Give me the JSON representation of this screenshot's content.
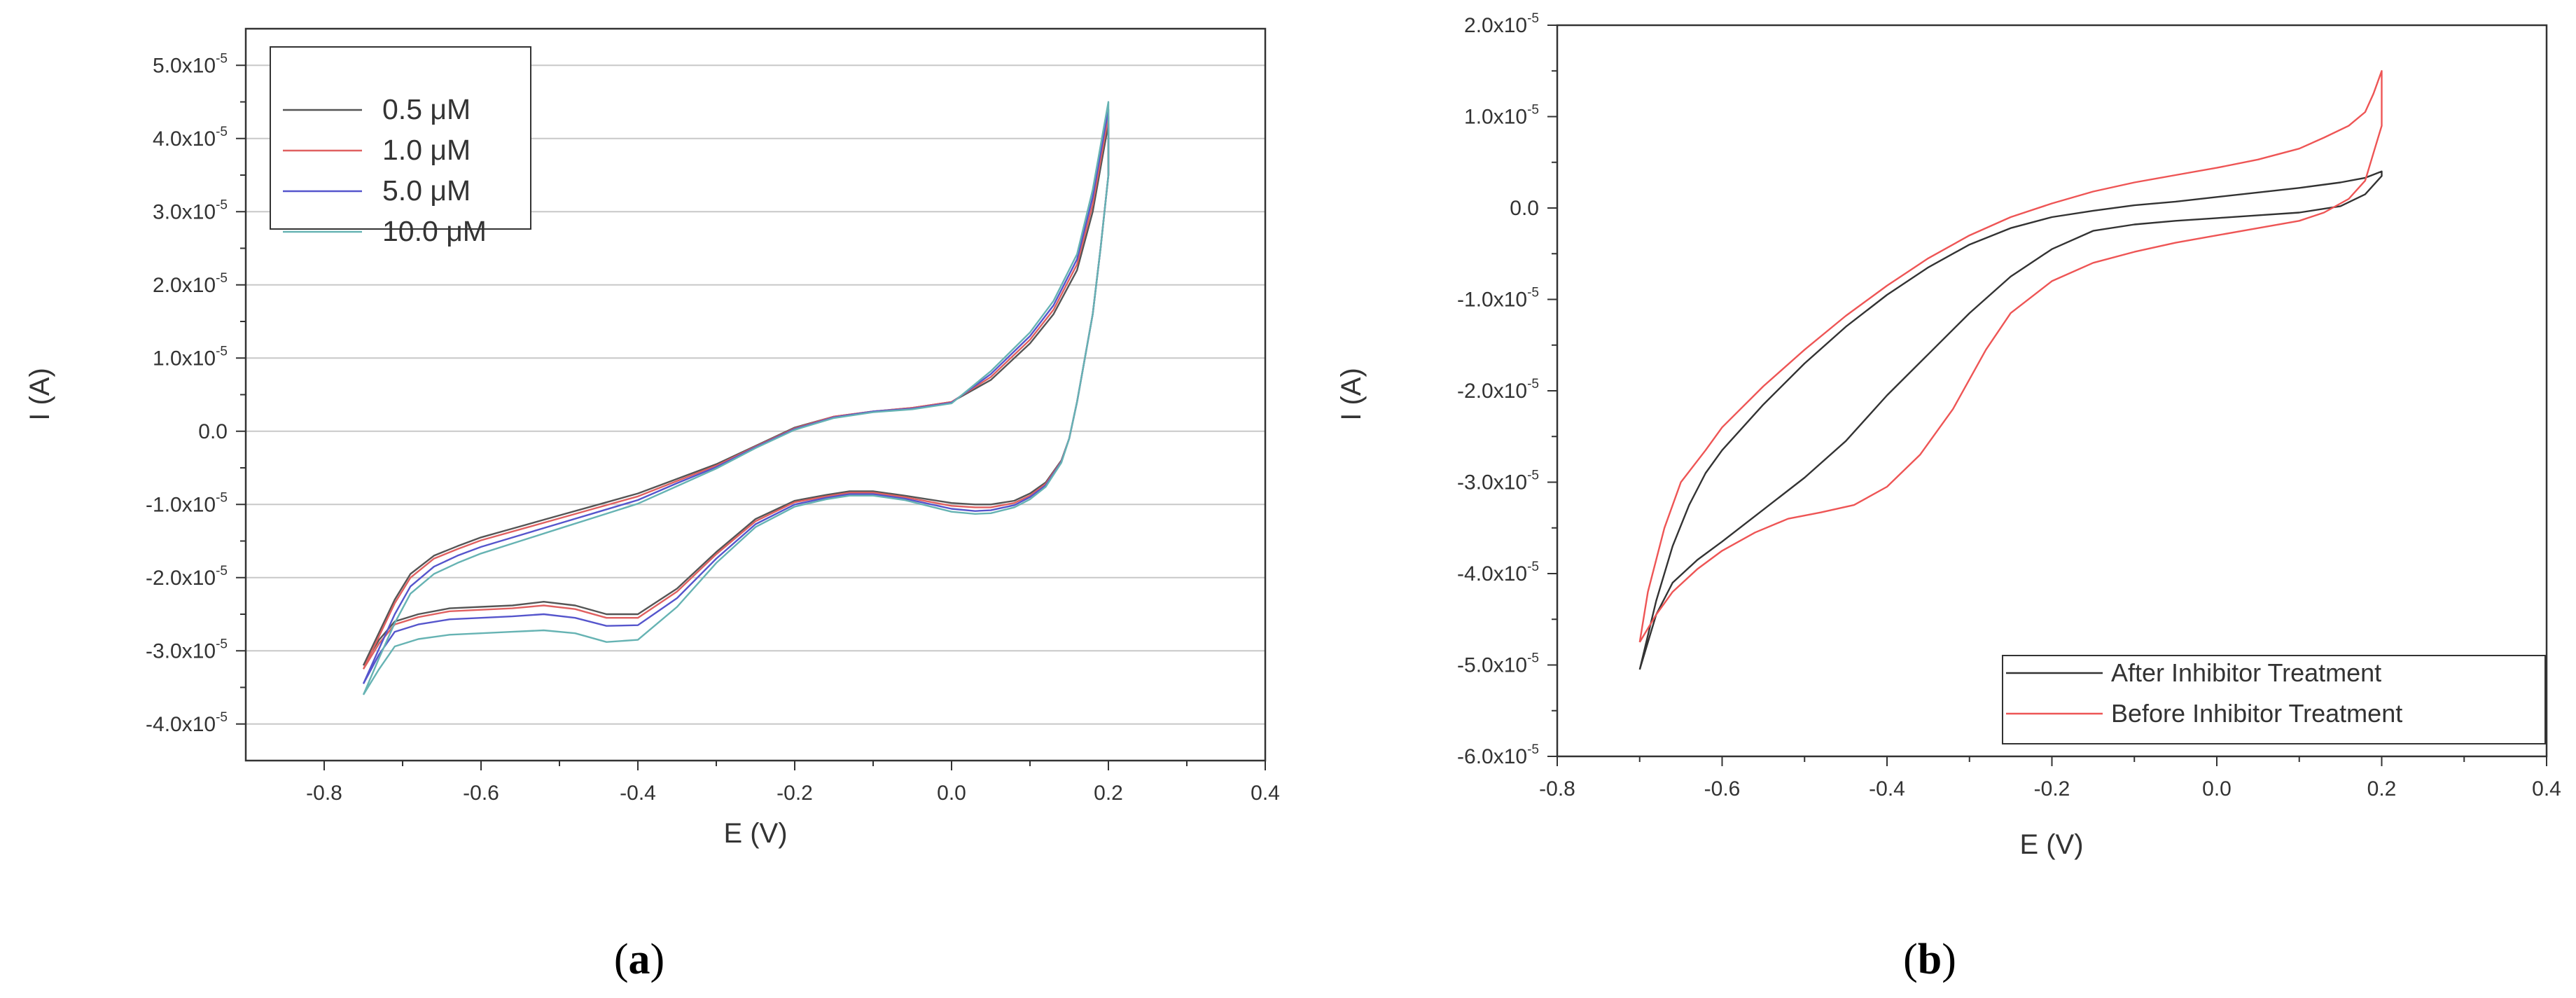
{
  "chart_data": [
    {
      "panel": "a",
      "caption": {
        "open": "(",
        "letter": "a",
        "close": ")"
      },
      "type": "line",
      "xlabel": "E (V)",
      "ylabel": "I (A)",
      "xlim": [
        -0.9,
        0.4
      ],
      "ylim": [
        -4.5e-05,
        5.5e-05
      ],
      "xticks": [
        {
          "value": -0.8,
          "label": "-0.8"
        },
        {
          "value": -0.6,
          "label": "-0.6"
        },
        {
          "value": -0.4,
          "label": "-0.4"
        },
        {
          "value": -0.2,
          "label": "-0.2"
        },
        {
          "value": 0.0,
          "label": "0.0"
        },
        {
          "value": 0.2,
          "label": "0.2"
        },
        {
          "value": 0.4,
          "label": "0.4"
        }
      ],
      "yticks": [
        {
          "value": 5e-05,
          "mantissa": "5.0x10",
          "exp": "-5"
        },
        {
          "value": 4e-05,
          "mantissa": "4.0x10",
          "exp": "-5"
        },
        {
          "value": 3e-05,
          "mantissa": "3.0x10",
          "exp": "-5"
        },
        {
          "value": 2e-05,
          "mantissa": "2.0x10",
          "exp": "-5"
        },
        {
          "value": 1e-05,
          "mantissa": "1.0x10",
          "exp": "-5"
        },
        {
          "value": 0.0,
          "mantissa": "0.0",
          "exp": ""
        },
        {
          "value": -1e-05,
          "mantissa": "-1.0x10",
          "exp": "-5"
        },
        {
          "value": -2e-05,
          "mantissa": "-2.0x10",
          "exp": "-5"
        },
        {
          "value": -3e-05,
          "mantissa": "-3.0x10",
          "exp": "-5"
        },
        {
          "value": -4e-05,
          "mantissa": "-4.0x10",
          "exp": "-5"
        }
      ],
      "grid": "horizontal",
      "legend_position": "top-left",
      "series": [
        {
          "name": "0.5 μM",
          "color": "#555555",
          "x": [
            -0.75,
            -0.73,
            -0.71,
            -0.69,
            -0.66,
            -0.63,
            -0.6,
            -0.55,
            -0.5,
            -0.45,
            -0.4,
            -0.35,
            -0.3,
            -0.25,
            -0.2,
            -0.15,
            -0.1,
            -0.05,
            0.0,
            0.05,
            0.1,
            0.13,
            0.16,
            0.18,
            0.2,
            0.2,
            0.19,
            0.18,
            0.17,
            0.16,
            0.15,
            0.14,
            0.12,
            0.1,
            0.08,
            0.05,
            0.03,
            0.0,
            -0.03,
            -0.06,
            -0.1,
            -0.13,
            -0.16,
            -0.2,
            -0.25,
            -0.3,
            -0.35,
            -0.4,
            -0.44,
            -0.48,
            -0.52,
            -0.56,
            -0.6,
            -0.64,
            -0.68,
            -0.71,
            -0.73,
            -0.75
          ],
          "y": [
            -3.2e-05,
            -2.75e-05,
            -2.3e-05,
            -1.95e-05,
            -1.7e-05,
            -1.57e-05,
            -1.45e-05,
            -1.3e-05,
            -1.15e-05,
            -1e-05,
            -8.5e-06,
            -6.5e-06,
            -4.5e-06,
            -2e-06,
            5e-07,
            2e-06,
            2.7e-06,
            3.2e-06,
            4e-06,
            7e-06,
            1.2e-05,
            1.6e-05,
            2.2e-05,
            3e-05,
            4.2e-05,
            3.5e-05,
            2.5e-05,
            1.6e-05,
            1e-05,
            4e-06,
            -1e-06,
            -4e-06,
            -7e-06,
            -8.5e-06,
            -9.5e-06,
            -1e-05,
            -1e-05,
            -9.8e-06,
            -9.3e-06,
            -8.8e-06,
            -8.2e-06,
            -8.2e-06,
            -8.7e-06,
            -9.5e-06,
            -1.2e-05,
            -1.65e-05,
            -2.15e-05,
            -2.5e-05,
            -2.5e-05,
            -2.38e-05,
            -2.33e-05,
            -2.38e-05,
            -2.4e-05,
            -2.42e-05,
            -2.5e-05,
            -2.6e-05,
            -2.85e-05,
            -3.2e-05
          ]
        },
        {
          "name": "1.0 μM",
          "color": "#e06060",
          "x": [
            -0.75,
            -0.73,
            -0.71,
            -0.69,
            -0.66,
            -0.63,
            -0.6,
            -0.55,
            -0.5,
            -0.45,
            -0.4,
            -0.35,
            -0.3,
            -0.25,
            -0.2,
            -0.15,
            -0.1,
            -0.05,
            0.0,
            0.05,
            0.1,
            0.13,
            0.16,
            0.18,
            0.2,
            0.2,
            0.19,
            0.18,
            0.17,
            0.16,
            0.15,
            0.14,
            0.12,
            0.1,
            0.08,
            0.05,
            0.03,
            0.0,
            -0.03,
            -0.06,
            -0.1,
            -0.13,
            -0.16,
            -0.2,
            -0.25,
            -0.3,
            -0.35,
            -0.4,
            -0.44,
            -0.48,
            -0.52,
            -0.56,
            -0.6,
            -0.64,
            -0.68,
            -0.71,
            -0.73,
            -0.75
          ],
          "y": [
            -3.25e-05,
            -2.8e-05,
            -2.35e-05,
            -2e-05,
            -1.74e-05,
            -1.61e-05,
            -1.49e-05,
            -1.34e-05,
            -1.19e-05,
            -1.04e-05,
            -8.9e-06,
            -6.8e-06,
            -4.7e-06,
            -2.1e-06,
            4e-07,
            2e-06,
            2.7e-06,
            3.2e-06,
            4e-06,
            7.4e-06,
            1.25e-05,
            1.66e-05,
            2.28e-05,
            3.1e-05,
            4.3e-05,
            3.5e-05,
            2.5e-05,
            1.6e-05,
            1e-05,
            4e-06,
            -1e-06,
            -4.1e-06,
            -7.2e-06,
            -8.8e-06,
            -9.8e-06,
            -1.04e-05,
            -1.04e-05,
            -1.02e-05,
            -9.6e-06,
            -9e-06,
            -8.4e-06,
            -8.4e-06,
            -8.9e-06,
            -9.7e-06,
            -1.23e-05,
            -1.68e-05,
            -2.19e-05,
            -2.55e-05,
            -2.55e-05,
            -2.43e-05,
            -2.38e-05,
            -2.42e-05,
            -2.44e-05,
            -2.46e-05,
            -2.54e-05,
            -2.64e-05,
            -2.9e-05,
            -3.25e-05
          ]
        },
        {
          "name": "5.0 μM",
          "color": "#5555cc",
          "x": [
            -0.75,
            -0.73,
            -0.71,
            -0.69,
            -0.66,
            -0.63,
            -0.6,
            -0.55,
            -0.5,
            -0.45,
            -0.4,
            -0.35,
            -0.3,
            -0.25,
            -0.2,
            -0.15,
            -0.1,
            -0.05,
            0.0,
            0.05,
            0.1,
            0.13,
            0.16,
            0.18,
            0.2,
            0.2,
            0.19,
            0.18,
            0.17,
            0.16,
            0.15,
            0.14,
            0.12,
            0.1,
            0.08,
            0.05,
            0.03,
            0.0,
            -0.03,
            -0.06,
            -0.1,
            -0.13,
            -0.16,
            -0.2,
            -0.25,
            -0.3,
            -0.35,
            -0.4,
            -0.44,
            -0.48,
            -0.52,
            -0.56,
            -0.6,
            -0.64,
            -0.68,
            -0.71,
            -0.73,
            -0.75
          ],
          "y": [
            -3.45e-05,
            -2.97e-05,
            -2.5e-05,
            -2.12e-05,
            -1.85e-05,
            -1.7e-05,
            -1.58e-05,
            -1.42e-05,
            -1.26e-05,
            -1.1e-05,
            -9.4e-06,
            -7.1e-06,
            -4.9e-06,
            -2.2e-06,
            3e-07,
            1.9e-06,
            2.7e-06,
            3.1e-06,
            3.9e-06,
            7.8e-06,
            1.3e-05,
            1.72e-05,
            2.35e-05,
            3.2e-05,
            4.4e-05,
            3.5e-05,
            2.5e-05,
            1.6e-05,
            1e-05,
            4e-06,
            -1e-06,
            -4.2e-06,
            -7.4e-06,
            -9e-06,
            -1.01e-05,
            -1.08e-05,
            -1.09e-05,
            -1.06e-05,
            -9.9e-06,
            -9.2e-06,
            -8.6e-06,
            -8.6e-06,
            -9.1e-06,
            -1e-05,
            -1.27e-05,
            -1.74e-05,
            -2.28e-05,
            -2.65e-05,
            -2.66e-05,
            -2.55e-05,
            -2.5e-05,
            -2.53e-05,
            -2.55e-05,
            -2.57e-05,
            -2.64e-05,
            -2.74e-05,
            -3.05e-05,
            -3.45e-05
          ]
        },
        {
          "name": "10.0 μM",
          "color": "#66b3b3",
          "x": [
            -0.75,
            -0.73,
            -0.71,
            -0.69,
            -0.66,
            -0.63,
            -0.6,
            -0.55,
            -0.5,
            -0.45,
            -0.4,
            -0.35,
            -0.3,
            -0.25,
            -0.2,
            -0.15,
            -0.1,
            -0.05,
            0.0,
            0.05,
            0.1,
            0.13,
            0.16,
            0.18,
            0.2,
            0.2,
            0.19,
            0.18,
            0.17,
            0.16,
            0.15,
            0.14,
            0.12,
            0.1,
            0.08,
            0.05,
            0.03,
            0.0,
            -0.03,
            -0.06,
            -0.1,
            -0.13,
            -0.16,
            -0.2,
            -0.25,
            -0.3,
            -0.35,
            -0.4,
            -0.44,
            -0.48,
            -0.52,
            -0.56,
            -0.6,
            -0.64,
            -0.68,
            -0.71,
            -0.73,
            -0.75
          ],
          "y": [
            -3.6e-05,
            -3.1e-05,
            -2.62e-05,
            -2.22e-05,
            -1.95e-05,
            -1.8e-05,
            -1.67e-05,
            -1.5e-05,
            -1.33e-05,
            -1.16e-05,
            -9.9e-06,
            -7.5e-06,
            -5.1e-06,
            -2.3e-06,
            2e-07,
            1.8e-06,
            2.6e-06,
            3e-06,
            3.8e-06,
            8.2e-06,
            1.35e-05,
            1.78e-05,
            2.42e-05,
            3.3e-05,
            4.5e-05,
            3.5e-05,
            2.5e-05,
            1.6e-05,
            1e-05,
            4e-06,
            -1e-06,
            -4.3e-06,
            -7.6e-06,
            -9.3e-06,
            -1.04e-05,
            -1.12e-05,
            -1.13e-05,
            -1.1e-05,
            -1.02e-05,
            -9.4e-06,
            -8.8e-06,
            -8.8e-06,
            -9.3e-06,
            -1.03e-05,
            -1.31e-05,
            -1.8e-05,
            -2.4e-05,
            -2.85e-05,
            -2.88e-05,
            -2.76e-05,
            -2.72e-05,
            -2.74e-05,
            -2.76e-05,
            -2.78e-05,
            -2.84e-05,
            -2.94e-05,
            -3.25e-05,
            -3.6e-05
          ]
        }
      ]
    },
    {
      "panel": "b",
      "caption": {
        "open": "(",
        "letter": "b",
        "close": ")"
      },
      "type": "line",
      "xlabel": "E (V)",
      "ylabel": "I (A)",
      "xlim": [
        -0.8,
        0.4
      ],
      "ylim": [
        -6e-05,
        2e-05
      ],
      "xticks": [
        {
          "value": -0.8,
          "label": "-0.8"
        },
        {
          "value": -0.6,
          "label": "-0.6"
        },
        {
          "value": -0.4,
          "label": "-0.4"
        },
        {
          "value": -0.2,
          "label": "-0.2"
        },
        {
          "value": 0.0,
          "label": "0.0"
        },
        {
          "value": 0.2,
          "label": "0.2"
        },
        {
          "value": 0.4,
          "label": "0.4"
        }
      ],
      "yticks": [
        {
          "value": 2e-05,
          "mantissa": "2.0x10",
          "exp": "-5"
        },
        {
          "value": 1e-05,
          "mantissa": "1.0x10",
          "exp": "-5"
        },
        {
          "value": 0.0,
          "mantissa": "0.0",
          "exp": ""
        },
        {
          "value": -1e-05,
          "mantissa": "-1.0x10",
          "exp": "-5"
        },
        {
          "value": -2e-05,
          "mantissa": "-2.0x10",
          "exp": "-5"
        },
        {
          "value": -3e-05,
          "mantissa": "-3.0x10",
          "exp": "-5"
        },
        {
          "value": -4e-05,
          "mantissa": "-4.0x10",
          "exp": "-5"
        },
        {
          "value": -5e-05,
          "mantissa": "-5.0x10",
          "exp": "-5"
        },
        {
          "value": -6e-05,
          "mantissa": "-6.0x10",
          "exp": "-5"
        }
      ],
      "grid": "off",
      "legend_position": "bottom-right",
      "series": [
        {
          "name": "After Inhibitor Treatment",
          "color": "#333333",
          "x": [
            -0.7,
            -0.68,
            -0.66,
            -0.64,
            -0.62,
            -0.6,
            -0.55,
            -0.5,
            -0.45,
            -0.4,
            -0.35,
            -0.3,
            -0.25,
            -0.2,
            -0.15,
            -0.1,
            -0.05,
            0.0,
            0.05,
            0.1,
            0.15,
            0.18,
            0.2,
            0.2,
            0.18,
            0.15,
            0.1,
            0.05,
            0.0,
            -0.05,
            -0.1,
            -0.15,
            -0.2,
            -0.25,
            -0.3,
            -0.35,
            -0.4,
            -0.45,
            -0.5,
            -0.55,
            -0.6,
            -0.63,
            -0.66,
            -0.68,
            -0.7
          ],
          "y": [
            -5.05e-05,
            -4.3e-05,
            -3.7e-05,
            -3.25e-05,
            -2.9e-05,
            -2.65e-05,
            -2.15e-05,
            -1.7e-05,
            -1.3e-05,
            -9.5e-06,
            -6.5e-06,
            -4e-06,
            -2.2e-06,
            -1e-06,
            -3e-07,
            3e-07,
            7e-07,
            1.2e-06,
            1.7e-06,
            2.2e-06,
            2.8e-06,
            3.3e-06,
            4e-06,
            3.5e-06,
            1.5e-06,
            2e-07,
            -5e-07,
            -8e-07,
            -1.1e-06,
            -1.4e-06,
            -1.8e-06,
            -2.5e-06,
            -4.5e-06,
            -7.5e-06,
            -1.15e-05,
            -1.6e-05,
            -2.05e-05,
            -2.55e-05,
            -2.95e-05,
            -3.3e-05,
            -3.65e-05,
            -3.85e-05,
            -4.1e-05,
            -4.45e-05,
            -5.05e-05
          ]
        },
        {
          "name": "Before Inhibitor Treatment",
          "color": "#ee5555",
          "x": [
            -0.7,
            -0.69,
            -0.67,
            -0.65,
            -0.62,
            -0.6,
            -0.55,
            -0.5,
            -0.45,
            -0.4,
            -0.35,
            -0.3,
            -0.25,
            -0.2,
            -0.15,
            -0.1,
            -0.05,
            0.0,
            0.05,
            0.1,
            0.13,
            0.16,
            0.18,
            0.19,
            0.2,
            0.2,
            0.19,
            0.18,
            0.16,
            0.13,
            0.1,
            0.05,
            0.0,
            -0.05,
            -0.1,
            -0.15,
            -0.2,
            -0.25,
            -0.28,
            -0.32,
            -0.36,
            -0.4,
            -0.44,
            -0.48,
            -0.52,
            -0.56,
            -0.6,
            -0.63,
            -0.66,
            -0.68,
            -0.7
          ],
          "y": [
            -4.75e-05,
            -4.2e-05,
            -3.5e-05,
            -3e-05,
            -2.65e-05,
            -2.4e-05,
            -1.95e-05,
            -1.55e-05,
            -1.18e-05,
            -8.5e-06,
            -5.5e-06,
            -3e-06,
            -1e-06,
            5e-07,
            1.8e-06,
            2.8e-06,
            3.6e-06,
            4.4e-06,
            5.3e-06,
            6.5e-06,
            7.7e-06,
            9e-06,
            1.05e-05,
            1.25e-05,
            1.5e-05,
            9e-06,
            6e-06,
            3e-06,
            1e-06,
            -5e-07,
            -1.4e-06,
            -2.2e-06,
            -3e-06,
            -3.8e-06,
            -4.8e-06,
            -6e-06,
            -8e-06,
            -1.15e-05,
            -1.55e-05,
            -2.2e-05,
            -2.7e-05,
            -3.05e-05,
            -3.25e-05,
            -3.33e-05,
            -3.4e-05,
            -3.55e-05,
            -3.75e-05,
            -3.95e-05,
            -4.2e-05,
            -4.45e-05,
            -4.75e-05
          ]
        }
      ]
    }
  ]
}
